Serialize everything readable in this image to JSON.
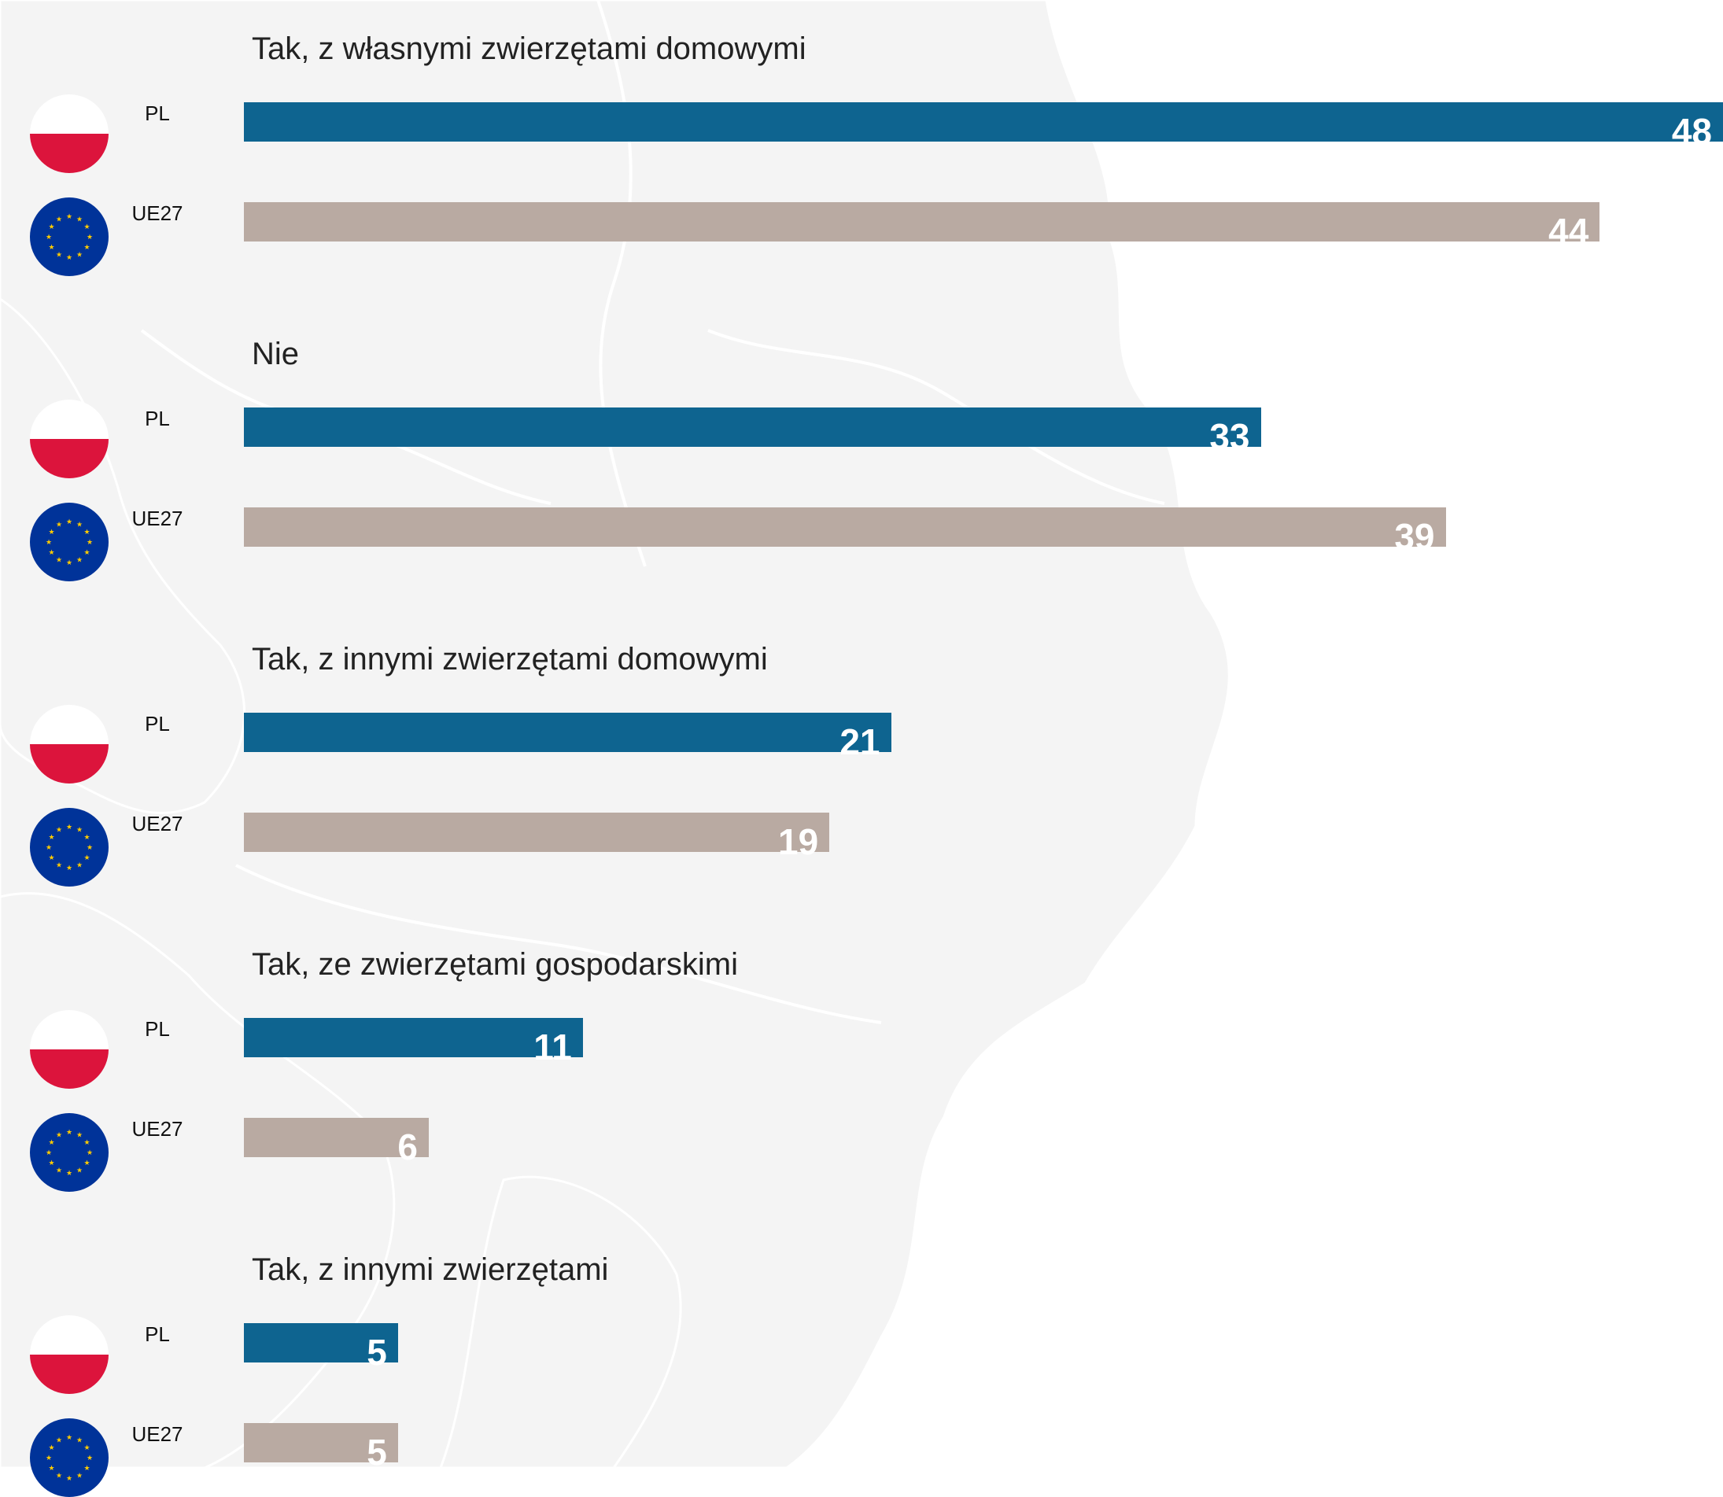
{
  "colors": {
    "pl_bar": "#0e6490",
    "eu_bar": "#b9aaa2",
    "value_text": "#ffffff",
    "flag_pl_red": "#dc143c",
    "flag_eu_blue": "#003399",
    "flag_eu_star": "#ffcc00"
  },
  "chart_data": {
    "type": "bar",
    "orientation": "horizontal",
    "xlim": [
      0,
      48
    ],
    "series": [
      {
        "name": "PL",
        "values": [
          48,
          33,
          21,
          11,
          5
        ]
      },
      {
        "name": "UE27",
        "values": [
          44,
          39,
          19,
          6,
          5
        ]
      }
    ],
    "groups": [
      {
        "title": "Tak, z własnymi zwierzętami domowymi",
        "rows": [
          {
            "label": "PL",
            "value": 48
          },
          {
            "label": "UE27",
            "value": 44
          }
        ]
      },
      {
        "title": "Nie",
        "rows": [
          {
            "label": "PL",
            "value": 33
          },
          {
            "label": "UE27",
            "value": 39
          }
        ]
      },
      {
        "title": "Tak, z innymi zwierzętami domowymi",
        "rows": [
          {
            "label": "PL",
            "value": 21
          },
          {
            "label": "UE27",
            "value": 19
          }
        ]
      },
      {
        "title": "Tak, ze zwierzętami gospodarskimi",
        "rows": [
          {
            "label": "PL",
            "value": 11
          },
          {
            "label": "UE27",
            "value": 6
          }
        ]
      },
      {
        "title": "Tak, z innymi zwierzętami",
        "rows": [
          {
            "label": "PL",
            "value": 5
          },
          {
            "label": "UE27",
            "value": 5
          }
        ]
      }
    ]
  }
}
